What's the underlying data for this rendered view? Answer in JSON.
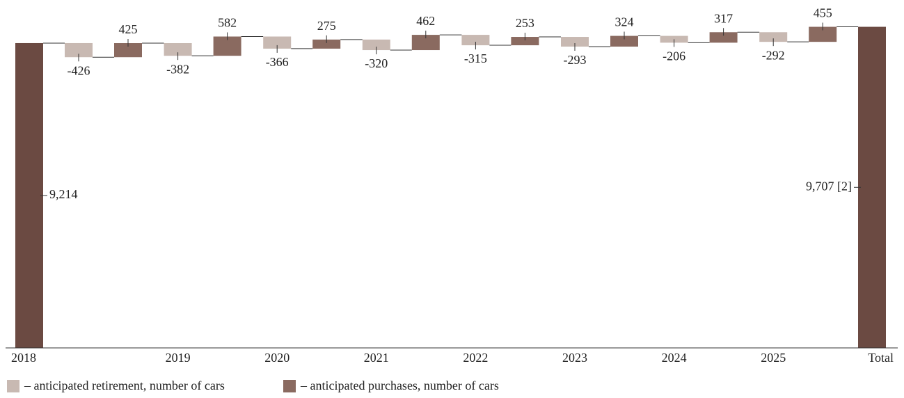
{
  "chart_data": {
    "type": "waterfall",
    "categories": [
      "2018",
      null,
      null,
      "2019",
      null,
      "2020",
      null,
      "2021",
      null,
      "2022",
      null,
      "2023",
      null,
      "2024",
      null,
      "2025",
      null,
      "Total"
    ],
    "values": [
      9214,
      -426,
      425,
      -382,
      582,
      -366,
      275,
      -320,
      462,
      -315,
      253,
      -293,
      324,
      -206,
      317,
      -292,
      455,
      9707
    ],
    "value_labels": [
      "9,214",
      "-426",
      "425",
      "-382",
      "582",
      "-366",
      "275",
      "-320",
      "462",
      "-315",
      "253",
      "-293",
      "324",
      "-206",
      "317",
      "-292",
      "455",
      "9,707 [2]"
    ],
    "series": [
      {
        "name": "– anticipated retirement, number of cars",
        "color": "#c8b9b2"
      },
      {
        "name": "– anticipated purchases, number of cars",
        "color": "#8a6a60"
      }
    ],
    "total_color": "#6b4a42",
    "ylim": [
      0,
      10000
    ]
  }
}
